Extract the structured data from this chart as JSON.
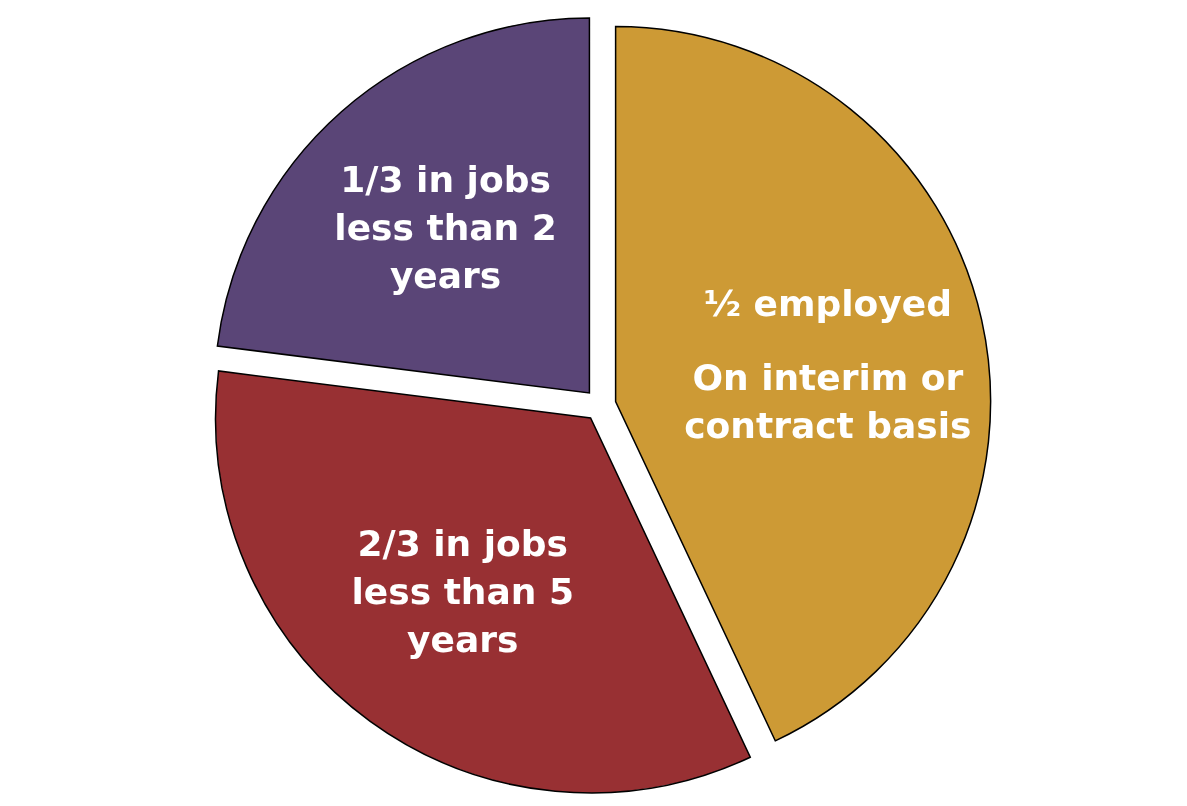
{
  "chart_data": {
    "type": "pie",
    "categories": [
      "½ employed\nOn interim or\ncontract basis",
      "2/3 in jobs\nless than 5\nyears",
      "1/3 in jobs\nless than 2\nyears"
    ],
    "values": [
      43,
      34,
      23
    ],
    "colors": [
      "#cd9a35",
      "#983033",
      "#5a4577"
    ]
  }
}
